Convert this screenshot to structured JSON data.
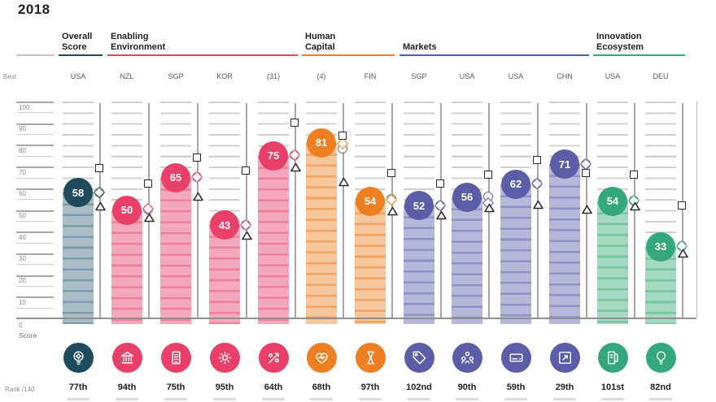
{
  "title": "2018",
  "axis": {
    "best_label": "Best",
    "score_label": "Score",
    "zero_label": "0",
    "rank_label": "Rank /140",
    "tick_labels": [
      "100",
      "90",
      "80",
      "70",
      "60",
      "50",
      "40",
      "30",
      "20",
      "10"
    ],
    "ylim": [
      0,
      100
    ]
  },
  "palette": {
    "overall": {
      "main": "#1e4b5e",
      "bar_fill": "#aabcc6",
      "bar_stripe": "#7f9aa9"
    },
    "enabling": {
      "main": "#e84069",
      "bar_fill": "#f4a8bb",
      "bar_stripe": "#ec7f9c"
    },
    "human": {
      "main": "#ee7f22",
      "bar_fill": "#f6c79d",
      "bar_stripe": "#f0a363"
    },
    "markets": {
      "main": "#5b5ea6",
      "bar_fill": "#b6b8d9",
      "bar_stripe": "#8f92c3"
    },
    "innovation": {
      "main": "#35a77c",
      "bar_fill": "#a5d9c2",
      "bar_stripe": "#74c5a0"
    }
  },
  "groups": [
    {
      "id": "overall",
      "label": "Overall\nScore",
      "col_start": 0,
      "col_end": 0
    },
    {
      "id": "enabling",
      "label": "Enabling\nEnvironment",
      "col_start": 1,
      "col_end": 4
    },
    {
      "id": "human",
      "label": "Human\nCapital",
      "col_start": 5,
      "col_end": 6
    },
    {
      "id": "markets",
      "label": "Markets",
      "col_start": 7,
      "col_end": 10
    },
    {
      "id": "innovation",
      "label": "Innovation\nEcosystem",
      "col_start": 11,
      "col_end": 12
    }
  ],
  "columns": [
    {
      "best": "USA",
      "score": 58,
      "group": "overall",
      "rank": "77th",
      "icon": "bulb-gear-icon",
      "markers": {
        "square": 69,
        "circle": 58,
        "diamond": 58,
        "triangle": 52
      }
    },
    {
      "best": "NZL",
      "score": 50,
      "group": "enabling",
      "rank": "94th",
      "icon": "bank-icon",
      "markers": {
        "square": 62,
        "circle": 50,
        "diamond": 50.5,
        "triangle": 47
      }
    },
    {
      "best": "SGP",
      "score": 65,
      "group": "enabling",
      "rank": "75th",
      "icon": "building-icon",
      "markers": {
        "square": 74,
        "circle": 65,
        "diamond": 65,
        "triangle": 56.5
      }
    },
    {
      "best": "KOR",
      "score": 43,
      "group": "enabling",
      "rank": "95th",
      "icon": "gear-icon",
      "markers": {
        "square": 68,
        "circle": 43,
        "diamond": 43,
        "triangle": 38.5
      }
    },
    {
      "best": "(31)",
      "score": 75,
      "group": "enabling",
      "rank": "64th",
      "icon": "percent-arrow-icon",
      "markers": {
        "square": 90,
        "circle": 75,
        "diamond": 75,
        "triangle": 70
      }
    },
    {
      "best": "(4)",
      "score": 81,
      "group": "human",
      "rank": "68th",
      "icon": "heart-pulse-icon",
      "markers": {
        "square": 84,
        "circle": 78,
        "diamond": 80.5,
        "triangle": 63.5
      }
    },
    {
      "best": "FIN",
      "score": 54,
      "group": "human",
      "rank": "97th",
      "icon": "hourglass-icon",
      "markers": {
        "square": 67,
        "circle": 55,
        "diamond": 54.5,
        "triangle": 50
      }
    },
    {
      "best": "SGP",
      "score": 52,
      "group": "markets",
      "rank": "102nd",
      "icon": "tag-icon",
      "markers": {
        "square": 62,
        "circle": 52,
        "diamond": 52,
        "triangle": 48
      }
    },
    {
      "best": "USA",
      "score": 56,
      "group": "markets",
      "rank": "90th",
      "icon": "people-icon",
      "markers": {
        "square": 66,
        "circle": 56,
        "diamond": 53,
        "triangle": 51.5
      }
    },
    {
      "best": "USA",
      "score": 62,
      "group": "markets",
      "rank": "59th",
      "icon": "card-icon",
      "markers": {
        "square": 73,
        "circle": 62,
        "diamond": 62,
        "triangle": 53
      }
    },
    {
      "best": "CHN",
      "score": 71,
      "group": "markets",
      "rank": "29th",
      "icon": "expand-arrow-icon",
      "markers": {
        "square": 67,
        "circle": 71,
        "diamond": 71,
        "triangle": 50.5
      }
    },
    {
      "best": "USA",
      "score": 54,
      "group": "innovation",
      "rank": "101st",
      "icon": "book-icon",
      "markers": {
        "square": 66,
        "circle": 54,
        "diamond": 54,
        "triangle": 52
      }
    },
    {
      "best": "DEU",
      "score": 33,
      "group": "innovation",
      "rank": "82nd",
      "icon": "lightbulb-icon",
      "markers": {
        "square": 52,
        "circle": 33,
        "diamond": 33,
        "triangle": 30.5
      }
    }
  ],
  "chart_data": {
    "type": "bar",
    "title": "2018",
    "categories": [
      "USA",
      "NZL",
      "SGP",
      "KOR",
      "(31)",
      "(4)",
      "FIN",
      "SGP",
      "USA",
      "USA",
      "CHN",
      "USA",
      "DEU"
    ],
    "group_labels": [
      "Overall Score",
      "Enabling Environment",
      "Enabling Environment",
      "Enabling Environment",
      "Enabling Environment",
      "Human Capital",
      "Human Capital",
      "Markets",
      "Markets",
      "Markets",
      "Markets",
      "Innovation Ecosystem",
      "Innovation Ecosystem"
    ],
    "ranks": [
      "77th",
      "94th",
      "75th",
      "95th",
      "64th",
      "68th",
      "97th",
      "102nd",
      "90th",
      "59th",
      "29th",
      "101st",
      "82nd"
    ],
    "series": [
      {
        "name": "country_score",
        "values": [
          58,
          50,
          65,
          43,
          75,
          81,
          54,
          52,
          56,
          62,
          71,
          54,
          33
        ]
      },
      {
        "name": "square_marker",
        "values": [
          69,
          62,
          74,
          68,
          90,
          84,
          67,
          62,
          66,
          73,
          67,
          66,
          52
        ]
      },
      {
        "name": "circle_marker",
        "values": [
          58,
          50,
          65,
          43,
          75,
          78,
          55,
          52,
          56,
          62,
          71,
          54,
          33
        ]
      },
      {
        "name": "diamond_marker",
        "values": [
          58,
          50.5,
          65,
          43,
          75,
          80.5,
          54.5,
          52,
          53,
          62,
          71,
          54,
          33
        ]
      },
      {
        "name": "triangle_marker",
        "values": [
          52,
          47,
          56.5,
          38.5,
          70,
          63.5,
          50,
          48,
          51.5,
          53,
          50.5,
          52,
          30.5
        ]
      }
    ],
    "xlabel": "",
    "ylabel": "Score",
    "ylim": [
      0,
      100
    ],
    "grid": true,
    "legend_position": "none"
  }
}
